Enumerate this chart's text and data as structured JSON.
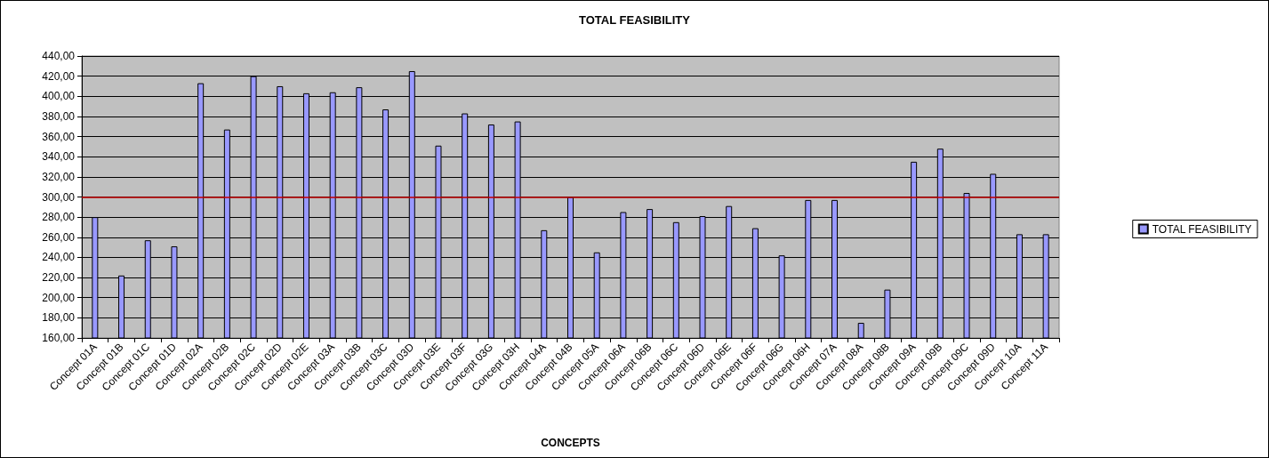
{
  "chart_data": {
    "type": "bar",
    "title": "TOTAL FEASIBILITY",
    "xlabel": "CONCEPTS",
    "categories": [
      "Concept 01A",
      "Concept 01B",
      "Concept 01C",
      "Concept 01D",
      "Concept 02A",
      "Concept 02B",
      "Concept 02C",
      "Concept 02D",
      "Concept 02E",
      "Concept 03A",
      "Concept 03B",
      "Concept 03C",
      "Concept 03D",
      "Concept 03E",
      "Concept 03F",
      "Concept 03G",
      "Concept 03H",
      "Concept 04A",
      "Concept 04B",
      "Concept 05A",
      "Concept 06A",
      "Concept 06B",
      "Concept 06C",
      "Concept 06D",
      "Concept 06E",
      "Concept 06F",
      "Concept 06G",
      "Concept 06H",
      "Concept 07A",
      "Concept 08A",
      "Concept 08B",
      "Concept 09A",
      "Concept 09B",
      "Concept 09C",
      "Concept 09D",
      "Concept 10A",
      "Concept 11A"
    ],
    "series": [
      {
        "name": "TOTAL FEASIBILITY",
        "color": "#9999ff",
        "values": [
          280,
          222,
          257,
          251,
          413,
          367,
          420,
          410,
          403,
          404,
          409,
          387,
          425,
          351,
          383,
          372,
          375,
          267,
          300,
          245,
          285,
          288,
          275,
          281,
          291,
          269,
          242,
          297,
          297,
          175,
          208,
          335,
          348,
          304,
          323,
          263,
          263
        ]
      }
    ],
    "ylim": [
      160,
      440
    ],
    "yticks": [
      {
        "value": 160,
        "label": "160,00"
      },
      {
        "value": 180,
        "label": "180,00"
      },
      {
        "value": 200,
        "label": "200,00"
      },
      {
        "value": 220,
        "label": "220,00"
      },
      {
        "value": 240,
        "label": "240,00"
      },
      {
        "value": 260,
        "label": "260,00"
      },
      {
        "value": 280,
        "label": "280,00"
      },
      {
        "value": 300,
        "label": "300,00"
      },
      {
        "value": 320,
        "label": "320,00"
      },
      {
        "value": 340,
        "label": "340,00"
      },
      {
        "value": 360,
        "label": "360,00"
      },
      {
        "value": 380,
        "label": "380,00"
      },
      {
        "value": 400,
        "label": "400,00"
      },
      {
        "value": 420,
        "label": "420,00"
      },
      {
        "value": 440,
        "label": "440,00"
      }
    ],
    "ref_lines": [
      {
        "axis": "y",
        "value": 300,
        "color": "#c00000"
      }
    ],
    "grid": "y",
    "legend": "right"
  }
}
